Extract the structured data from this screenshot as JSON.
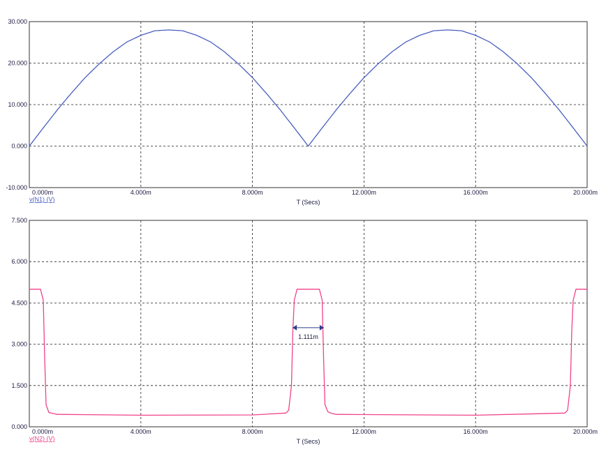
{
  "colors": {
    "series1": "#4a5fc1",
    "series2": "#f0428a",
    "text": "#1a1a40"
  },
  "chart_data": [
    {
      "type": "line",
      "xlabel": "T (Secs)",
      "ylabel": "",
      "xlim": [
        0,
        20
      ],
      "ylim": [
        -10,
        30
      ],
      "x_ticks": [
        0,
        4,
        8,
        12,
        16,
        20
      ],
      "x_tick_labels": [
        "0.000m",
        "4.000m",
        "8.000m",
        "12.000m",
        "16.000m",
        "20.000m"
      ],
      "y_ticks": [
        -10,
        0,
        10,
        20,
        30
      ],
      "y_tick_labels": [
        "-10.000",
        "0.000",
        "10.000",
        "20.000",
        "30.000"
      ],
      "grid": true,
      "series": [
        {
          "name": "v(N1) (V)",
          "x": [
            0,
            0.5,
            1,
            1.5,
            2,
            2.5,
            3,
            3.5,
            4,
            4.5,
            5,
            5.5,
            6,
            6.5,
            7,
            7.5,
            8,
            8.5,
            9,
            9.5,
            10,
            10.5,
            11,
            11.5,
            12,
            12.5,
            13,
            13.5,
            14,
            14.5,
            15,
            15.5,
            16,
            16.5,
            17,
            17.5,
            18,
            18.5,
            19,
            19.5,
            20
          ],
          "y": [
            0,
            4.4,
            8.7,
            12.7,
            16.5,
            19.8,
            22.7,
            25.1,
            26.7,
            27.8,
            28.0,
            27.8,
            26.7,
            25.1,
            22.7,
            19.8,
            16.5,
            12.7,
            8.7,
            4.4,
            0,
            4.4,
            8.7,
            12.7,
            16.5,
            19.8,
            22.7,
            25.1,
            26.7,
            27.8,
            28.0,
            27.8,
            26.7,
            25.1,
            22.7,
            19.8,
            16.5,
            12.7,
            8.7,
            4.4,
            0
          ]
        }
      ]
    },
    {
      "type": "line",
      "xlabel": "T (Secs)",
      "ylabel": "",
      "xlim": [
        0,
        20
      ],
      "ylim": [
        0,
        7.5
      ],
      "x_ticks": [
        0,
        4,
        8,
        12,
        16,
        20
      ],
      "x_tick_labels": [
        "0.000m",
        "4.000m",
        "8.000m",
        "12.000m",
        "16.000m",
        "20.000m"
      ],
      "y_ticks": [
        0,
        1.5,
        3,
        4.5,
        6,
        7.5
      ],
      "y_tick_labels": [
        "0.000",
        "1.500",
        "3.000",
        "4.500",
        "6.000",
        "7.500"
      ],
      "grid": true,
      "annotation": {
        "text": "1.111m",
        "x_start": 9.44,
        "x_end": 10.56,
        "y": 3.6
      },
      "series": [
        {
          "name": "v(N2) (V)",
          "x": [
            0,
            0.4,
            0.5,
            0.55,
            0.6,
            0.7,
            1,
            4,
            8,
            9.2,
            9.3,
            9.4,
            9.45,
            9.5,
            9.6,
            10.4,
            10.5,
            10.55,
            10.6,
            10.7,
            10.8,
            11,
            16,
            19.2,
            19.3,
            19.4,
            19.45,
            19.5,
            19.6,
            20
          ],
          "y": [
            5.0,
            5.0,
            4.6,
            2.5,
            0.8,
            0.52,
            0.45,
            0.42,
            0.43,
            0.5,
            0.6,
            1.5,
            3.5,
            4.6,
            5.0,
            5.0,
            4.6,
            2.5,
            0.8,
            0.55,
            0.5,
            0.45,
            0.42,
            0.5,
            0.6,
            1.5,
            3.5,
            4.6,
            5.0,
            5.0
          ]
        }
      ]
    }
  ]
}
